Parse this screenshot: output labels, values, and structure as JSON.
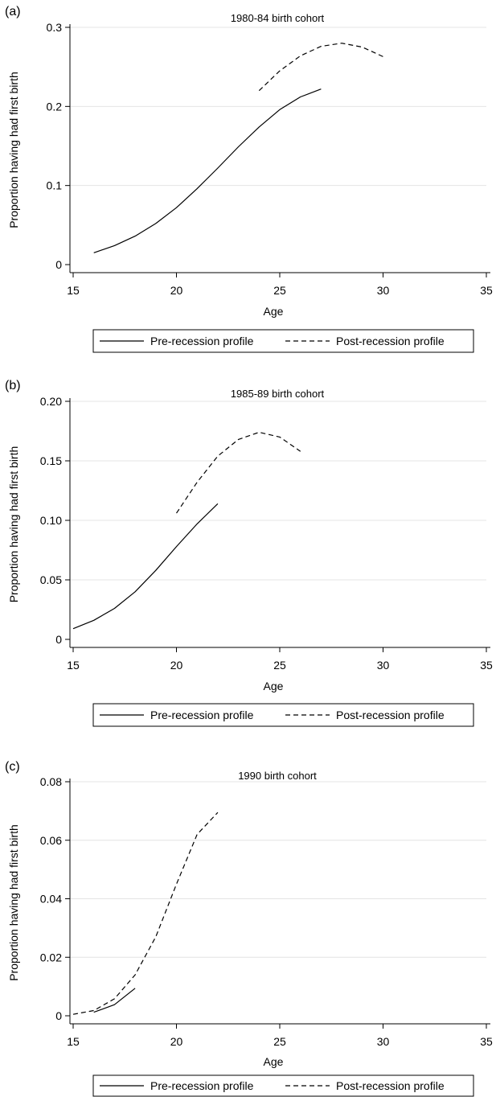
{
  "chart_data": [
    {
      "type": "line",
      "panel_label": "(a)",
      "title": "1980-84 birth cohort",
      "xlabel": "Age",
      "ylabel": "Proportion having had first birth",
      "xlim": [
        15,
        35
      ],
      "ylim": [
        0,
        0.3
      ],
      "xticks": [
        15,
        20,
        25,
        30,
        35
      ],
      "yticks": [
        0,
        0.1,
        0.2,
        0.3
      ],
      "ytick_labels": [
        "0",
        "0.1",
        "0.2",
        "0.3"
      ],
      "grid": true,
      "legend_position": "bottom",
      "series": [
        {
          "name": "Pre-recession profile",
          "style": "solid",
          "x": [
            16,
            17,
            18,
            19,
            20,
            21,
            22,
            23,
            24,
            25,
            26,
            27
          ],
          "y": [
            0.015,
            0.024,
            0.036,
            0.052,
            0.072,
            0.096,
            0.122,
            0.149,
            0.174,
            0.196,
            0.212,
            0.222
          ]
        },
        {
          "name": "Post-recession profile",
          "style": "dashed",
          "x": [
            24,
            25,
            26,
            27,
            28,
            29,
            30
          ],
          "y": [
            0.22,
            0.245,
            0.264,
            0.276,
            0.28,
            0.275,
            0.263
          ]
        }
      ]
    },
    {
      "type": "line",
      "panel_label": "(b)",
      "title": "1985-89 birth cohort",
      "xlabel": "Age",
      "ylabel": "Proportion having had first birth",
      "xlim": [
        15,
        35
      ],
      "ylim": [
        0,
        0.2
      ],
      "xticks": [
        15,
        20,
        25,
        30,
        35
      ],
      "yticks": [
        0,
        0.05,
        0.1,
        0.15,
        0.2
      ],
      "ytick_labels": [
        "0",
        "0.05",
        "0.10",
        "0.15",
        "0.20"
      ],
      "grid": true,
      "legend_position": "bottom",
      "series": [
        {
          "name": "Pre-recession profile",
          "style": "solid",
          "x": [
            15,
            16,
            17,
            18,
            19,
            20,
            21,
            22
          ],
          "y": [
            0.009,
            0.016,
            0.026,
            0.04,
            0.058,
            0.078,
            0.097,
            0.114
          ]
        },
        {
          "name": "Post-recession profile",
          "style": "dashed",
          "x": [
            20,
            21,
            22,
            23,
            24,
            25,
            26
          ],
          "y": [
            0.106,
            0.132,
            0.154,
            0.168,
            0.174,
            0.17,
            0.158
          ]
        }
      ]
    },
    {
      "type": "line",
      "panel_label": "(c)",
      "title": "1990 birth cohort",
      "xlabel": "Age",
      "ylabel": "Proportion having had first birth",
      "xlim": [
        15,
        35
      ],
      "ylim": [
        0,
        0.08
      ],
      "xticks": [
        15,
        20,
        25,
        30,
        35
      ],
      "yticks": [
        0,
        0.02,
        0.04,
        0.06,
        0.08
      ],
      "ytick_labels": [
        "0",
        "0.02",
        "0.04",
        "0.06",
        "0.08"
      ],
      "grid": true,
      "legend_position": "bottom",
      "series": [
        {
          "name": "Pre-recession profile",
          "style": "solid",
          "x": [
            16,
            17,
            18
          ],
          "y": [
            0.0012,
            0.0038,
            0.0094
          ]
        },
        {
          "name": "Post-recession profile",
          "style": "dashed",
          "x": [
            15,
            16,
            17,
            18,
            19,
            20,
            21,
            22
          ],
          "y": [
            0.0005,
            0.0018,
            0.0058,
            0.014,
            0.027,
            0.045,
            0.062,
            0.0695
          ]
        }
      ]
    }
  ]
}
